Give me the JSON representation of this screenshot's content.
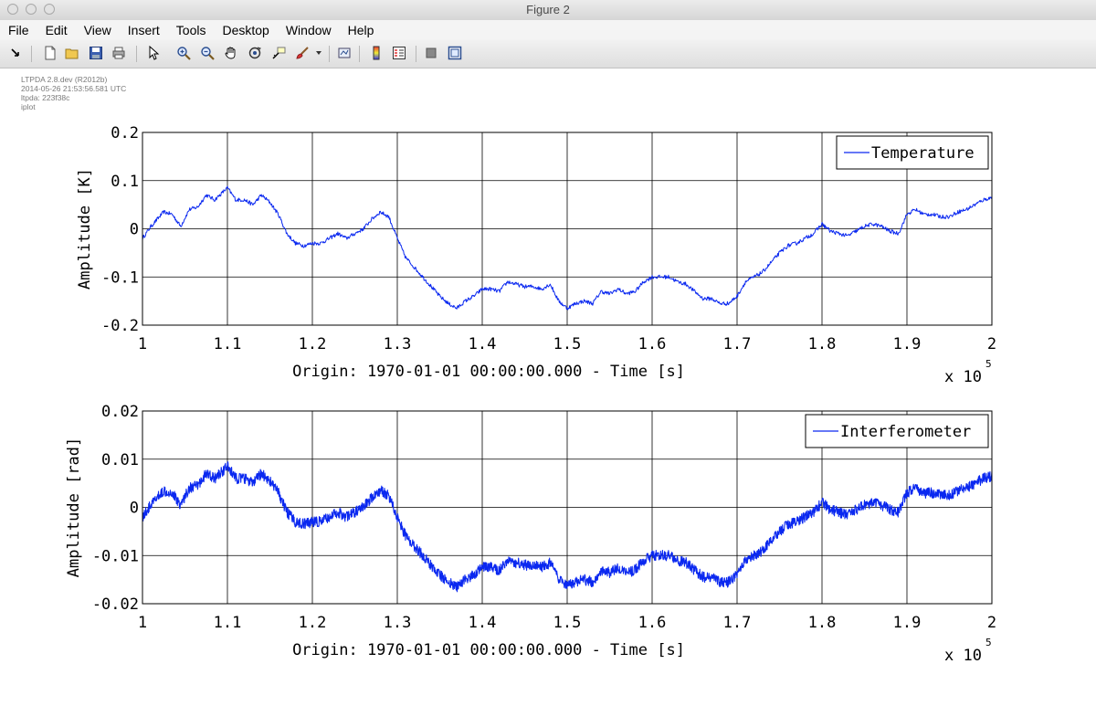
{
  "window": {
    "title": "Figure 2"
  },
  "menu": [
    "File",
    "Edit",
    "View",
    "Insert",
    "Tools",
    "Desktop",
    "Window",
    "Help"
  ],
  "toolbar_icons": [
    "dock-icon",
    "new-figure-icon",
    "open-file-icon",
    "save-icon",
    "print-icon",
    "pointer-icon",
    "zoom-in-icon",
    "zoom-out-icon",
    "pan-hand-icon",
    "rotate-3d-icon",
    "data-cursor-icon",
    "brush-icon",
    "brush-menu-icon",
    "link-plot-icon",
    "colorbar-icon",
    "legend-icon",
    "hide-plot-tools-icon",
    "show-plot-tools-icon"
  ],
  "meta": {
    "lines": [
      "LTPDA 2.8.dev (R2012b)",
      "2014-05-26 21:53:56.581 UTC",
      "ltpda: 223f38c",
      "iplot"
    ]
  },
  "colors": {
    "series": "#0a28f0",
    "grid": "#000000"
  },
  "chart_data": [
    {
      "type": "line",
      "grid": true,
      "legend_placement": "top-right",
      "xlabel": "Origin: 1970-01-01 00:00:00.000 - Time  [s]",
      "ylabel": "Amplitude  [K]",
      "x_exponent_label": "x 10",
      "x_exponent": "5",
      "xlim": [
        100000,
        200000
      ],
      "ylim": [
        -0.2,
        0.2
      ],
      "x_ticks": [
        1,
        1.1,
        1.2,
        1.3,
        1.4,
        1.5,
        1.6,
        1.7,
        1.8,
        1.9,
        2
      ],
      "y_ticks": [
        -0.2,
        -0.1,
        0,
        0.1,
        0.2
      ],
      "y_tick_labels": [
        "-0.2",
        "-0.1",
        "0",
        "0.1",
        "0.2"
      ],
      "series": [
        {
          "name": "Temperature",
          "noise_amplitude": 0.004,
          "x": [
            100000,
            101000,
            102500,
            103500,
            104500,
            105500,
            106500,
            107500,
            108500,
            110000,
            111000,
            112000,
            113000,
            114000,
            115000,
            116000,
            117000,
            118000,
            119000,
            120000,
            121000,
            122000,
            123000,
            124000,
            125000,
            126000,
            127000,
            128000,
            129000,
            130000,
            131000,
            132000,
            133000,
            134000,
            135000,
            136000,
            137000,
            138000,
            139000,
            140000,
            141000,
            142000,
            143000,
            144000,
            145000,
            146000,
            147000,
            148000,
            149000,
            150000,
            151000,
            152000,
            153000,
            154000,
            155000,
            156000,
            157000,
            158000,
            159000,
            160000,
            161000,
            162000,
            163000,
            164000,
            165000,
            166000,
            167000,
            168000,
            169000,
            170000,
            171000,
            172000,
            173000,
            174000,
            175000,
            176000,
            177000,
            178000,
            179000,
            180000,
            181000,
            182000,
            183000,
            184000,
            185000,
            186000,
            187000,
            188000,
            189000,
            190000,
            191000,
            192000,
            193000,
            194000,
            195000,
            196000,
            197000,
            198000,
            199000,
            200000
          ],
          "y": [
            -0.02,
            0.005,
            0.035,
            0.03,
            0.005,
            0.04,
            0.045,
            0.07,
            0.06,
            0.085,
            0.06,
            0.06,
            0.05,
            0.07,
            0.055,
            0.03,
            -0.01,
            -0.03,
            -0.035,
            -0.03,
            -0.03,
            -0.02,
            -0.01,
            -0.02,
            -0.01,
            0.0,
            0.02,
            0.035,
            0.025,
            -0.02,
            -0.06,
            -0.08,
            -0.1,
            -0.12,
            -0.14,
            -0.155,
            -0.165,
            -0.15,
            -0.14,
            -0.125,
            -0.125,
            -0.13,
            -0.11,
            -0.115,
            -0.12,
            -0.12,
            -0.125,
            -0.115,
            -0.15,
            -0.165,
            -0.155,
            -0.15,
            -0.155,
            -0.13,
            -0.135,
            -0.125,
            -0.135,
            -0.13,
            -0.11,
            -0.1,
            -0.1,
            -0.1,
            -0.11,
            -0.115,
            -0.13,
            -0.145,
            -0.145,
            -0.155,
            -0.155,
            -0.14,
            -0.11,
            -0.1,
            -0.09,
            -0.07,
            -0.05,
            -0.035,
            -0.03,
            -0.02,
            -0.01,
            0.01,
            -0.005,
            -0.01,
            -0.015,
            -0.005,
            0.005,
            0.01,
            0.005,
            -0.005,
            -0.01,
            0.03,
            0.04,
            0.03,
            0.03,
            0.025,
            0.025,
            0.035,
            0.04,
            0.05,
            0.06,
            0.065
          ]
        }
      ]
    },
    {
      "type": "line",
      "grid": true,
      "legend_placement": "top-right",
      "xlabel": "Origin: 1970-01-01 00:00:00.000 - Time  [s]",
      "ylabel": "Amplitude  [rad]",
      "x_exponent_label": "x 10",
      "x_exponent": "5",
      "xlim": [
        100000,
        200000
      ],
      "ylim": [
        -0.02,
        0.02
      ],
      "x_ticks": [
        1,
        1.1,
        1.2,
        1.3,
        1.4,
        1.5,
        1.6,
        1.7,
        1.8,
        1.9,
        2
      ],
      "y_ticks": [
        -0.02,
        -0.01,
        0,
        0.01,
        0.02
      ],
      "y_tick_labels": [
        "-0.02",
        "-0.01",
        "0",
        "0.01",
        "0.02"
      ],
      "series": [
        {
          "name": "Interferometer",
          "noise_amplitude": 0.0011,
          "x": [
            100000,
            101000,
            102500,
            103500,
            104500,
            105500,
            106500,
            107500,
            108500,
            110000,
            111000,
            112000,
            113000,
            114000,
            115000,
            116000,
            117000,
            118000,
            119000,
            120000,
            121000,
            122000,
            123000,
            124000,
            125000,
            126000,
            127000,
            128000,
            129000,
            130000,
            131000,
            132000,
            133000,
            134000,
            135000,
            136000,
            137000,
            138000,
            139000,
            140000,
            141000,
            142000,
            143000,
            144000,
            145000,
            146000,
            147000,
            148000,
            149000,
            150000,
            151000,
            152000,
            153000,
            154000,
            155000,
            156000,
            157000,
            158000,
            159000,
            160000,
            161000,
            162000,
            163000,
            164000,
            165000,
            166000,
            167000,
            168000,
            169000,
            170000,
            171000,
            172000,
            173000,
            174000,
            175000,
            176000,
            177000,
            178000,
            179000,
            180000,
            181000,
            182000,
            183000,
            184000,
            185000,
            186000,
            187000,
            188000,
            189000,
            190000,
            191000,
            192000,
            193000,
            194000,
            195000,
            196000,
            197000,
            198000,
            199000,
            200000
          ],
          "y": [
            -0.002,
            0.0005,
            0.0035,
            0.003,
            0.0005,
            0.004,
            0.0045,
            0.007,
            0.006,
            0.0085,
            0.006,
            0.006,
            0.005,
            0.007,
            0.0055,
            0.003,
            -0.001,
            -0.003,
            -0.0035,
            -0.003,
            -0.003,
            -0.002,
            -0.001,
            -0.002,
            -0.001,
            0.0,
            0.002,
            0.0035,
            0.0025,
            -0.002,
            -0.006,
            -0.008,
            -0.01,
            -0.012,
            -0.014,
            -0.0155,
            -0.0165,
            -0.015,
            -0.014,
            -0.0125,
            -0.0125,
            -0.013,
            -0.011,
            -0.0115,
            -0.012,
            -0.012,
            -0.0125,
            -0.0115,
            -0.015,
            -0.0165,
            -0.0155,
            -0.015,
            -0.0155,
            -0.013,
            -0.0135,
            -0.0125,
            -0.0135,
            -0.013,
            -0.011,
            -0.01,
            -0.01,
            -0.01,
            -0.011,
            -0.0115,
            -0.013,
            -0.0145,
            -0.0145,
            -0.0155,
            -0.0155,
            -0.014,
            -0.011,
            -0.01,
            -0.009,
            -0.007,
            -0.005,
            -0.0035,
            -0.003,
            -0.002,
            -0.001,
            0.001,
            -0.0005,
            -0.001,
            -0.0015,
            -0.0005,
            0.0005,
            0.001,
            0.0005,
            -0.0005,
            -0.001,
            0.003,
            0.004,
            0.003,
            0.003,
            0.0025,
            0.0025,
            0.0035,
            0.004,
            0.005,
            0.006,
            0.0065
          ]
        }
      ]
    }
  ]
}
